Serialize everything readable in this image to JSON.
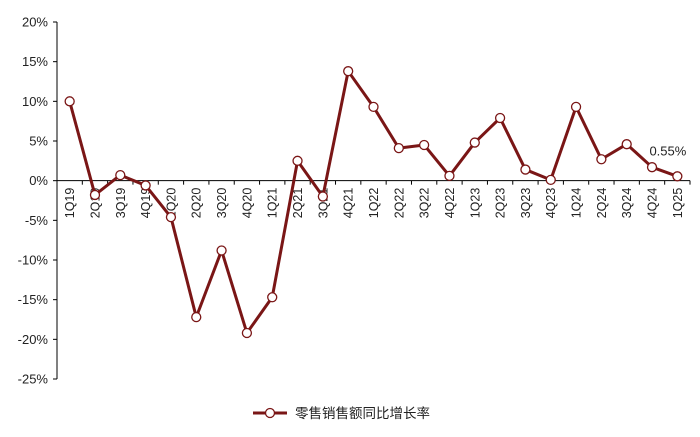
{
  "chart_data": {
    "type": "line",
    "title": "",
    "xlabel": "",
    "ylabel": "",
    "y_unit": "%",
    "ylim": [
      -25,
      20
    ],
    "yticks": [
      -25,
      -20,
      -15,
      -10,
      -5,
      0,
      5,
      10,
      15,
      20
    ],
    "ytick_labels": [
      "-25%",
      "-20%",
      "-15%",
      "-10%",
      "-5%",
      "0%",
      "5%",
      "10%",
      "15%",
      "20%"
    ],
    "grid": false,
    "legend_position": "bottom-center",
    "categories": [
      "1Q19",
      "2Q19",
      "3Q19",
      "4Q19",
      "1Q20",
      "2Q20",
      "3Q20",
      "4Q20",
      "1Q21",
      "2Q21",
      "3Q21",
      "4Q21",
      "1Q22",
      "2Q22",
      "3Q22",
      "4Q22",
      "1Q23",
      "2Q23",
      "3Q23",
      "4Q23",
      "1Q24",
      "2Q24",
      "3Q24",
      "4Q24",
      "1Q25"
    ],
    "series": [
      {
        "name": "零售销售额同比增长率",
        "color": "#7a1616",
        "values": [
          10.0,
          -1.8,
          0.7,
          -0.6,
          -4.6,
          -17.2,
          -8.8,
          -19.2,
          -14.7,
          2.5,
          -2.0,
          13.8,
          9.3,
          4.1,
          4.5,
          0.6,
          4.8,
          7.9,
          1.4,
          0.1,
          9.3,
          2.7,
          4.6,
          1.7,
          0.55
        ]
      }
    ],
    "annotations": [
      {
        "category": "1Q25",
        "text": "0.55%"
      }
    ]
  }
}
